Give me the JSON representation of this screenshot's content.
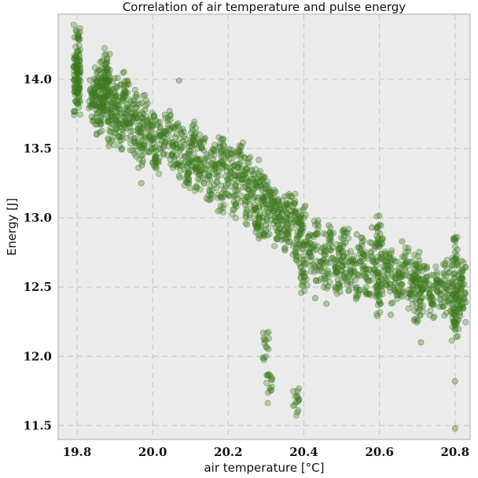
{
  "chart_data": {
    "type": "scatter",
    "title": "Correlation of air temperature and pulse energy",
    "xlabel": "air temperature [°C]",
    "ylabel": "Energy [J]",
    "xlim": [
      19.75,
      20.84
    ],
    "ylim": [
      11.4,
      14.47
    ],
    "xticks": [
      19.8,
      20.0,
      20.2,
      20.4,
      20.6,
      20.8
    ],
    "xtick_labels": [
      "19.8",
      "20.0",
      "20.2",
      "20.4",
      "20.6",
      "20.8"
    ],
    "yticks": [
      11.5,
      12.0,
      12.5,
      13.0,
      13.5,
      14.0
    ],
    "ytick_labels": [
      "11.5",
      "12.0",
      "12.5",
      "13.0",
      "13.5",
      "14.0"
    ],
    "grid": true,
    "series": [
      {
        "color": "#3d7a1e",
        "points": [
          [
            19.8,
            14.3
          ],
          [
            19.8,
            14.2
          ],
          [
            19.8,
            14.1
          ],
          [
            19.8,
            14.05
          ],
          [
            19.8,
            14.0
          ],
          [
            19.8,
            13.95
          ],
          [
            19.8,
            13.9
          ],
          [
            19.8,
            13.85
          ],
          [
            19.84,
            13.9
          ],
          [
            19.84,
            13.82
          ],
          [
            19.85,
            14.0
          ],
          [
            19.85,
            13.78
          ],
          [
            19.86,
            13.95
          ],
          [
            19.86,
            13.86
          ],
          [
            19.86,
            13.7
          ],
          [
            19.87,
            14.05
          ],
          [
            19.87,
            13.92
          ],
          [
            19.87,
            13.8
          ],
          [
            19.88,
            14.15
          ],
          [
            19.88,
            13.98
          ],
          [
            19.88,
            13.88
          ],
          [
            19.89,
            13.75
          ],
          [
            19.89,
            13.62
          ],
          [
            19.9,
            13.9
          ],
          [
            19.9,
            13.8
          ],
          [
            19.91,
            13.7
          ],
          [
            19.92,
            13.86
          ],
          [
            19.92,
            13.6
          ],
          [
            19.93,
            13.95
          ],
          [
            19.93,
            13.75
          ],
          [
            19.94,
            13.68
          ],
          [
            19.95,
            13.82
          ],
          [
            19.95,
            13.55
          ],
          [
            19.96,
            13.72
          ],
          [
            19.97,
            13.62
          ],
          [
            19.97,
            13.45
          ],
          [
            19.98,
            13.78
          ],
          [
            19.99,
            13.58
          ],
          [
            20.0,
            13.66
          ],
          [
            20.0,
            13.5
          ],
          [
            20.01,
            13.4
          ],
          [
            20.02,
            13.6
          ],
          [
            20.03,
            13.52
          ],
          [
            20.04,
            13.7
          ],
          [
            20.05,
            13.45
          ],
          [
            20.06,
            13.58
          ],
          [
            20.07,
            13.4
          ],
          [
            20.08,
            13.55
          ],
          [
            20.09,
            13.3
          ],
          [
            20.1,
            13.48
          ],
          [
            20.1,
            13.38
          ],
          [
            20.11,
            13.6
          ],
          [
            20.12,
            13.28
          ],
          [
            20.12,
            13.42
          ],
          [
            20.13,
            13.5
          ],
          [
            20.14,
            13.35
          ],
          [
            20.15,
            13.2
          ],
          [
            20.16,
            13.42
          ],
          [
            20.17,
            13.3
          ],
          [
            20.18,
            13.48
          ],
          [
            20.18,
            13.15
          ],
          [
            20.19,
            13.38
          ],
          [
            20.2,
            13.25
          ],
          [
            20.21,
            13.4
          ],
          [
            20.22,
            13.1
          ],
          [
            20.22,
            13.3
          ],
          [
            20.23,
            13.45
          ],
          [
            20.24,
            13.22
          ],
          [
            20.25,
            13.35
          ],
          [
            20.25,
            13.05
          ],
          [
            20.26,
            13.28
          ],
          [
            20.27,
            13.15
          ],
          [
            20.28,
            13.32
          ],
          [
            20.28,
            13.0
          ],
          [
            20.29,
            13.2
          ],
          [
            20.3,
            13.1
          ],
          [
            20.3,
            12.95
          ],
          [
            20.31,
            13.18
          ],
          [
            20.32,
            13.05
          ],
          [
            20.33,
            12.9
          ],
          [
            20.33,
            13.12
          ],
          [
            20.34,
            12.98
          ],
          [
            20.35,
            13.05
          ],
          [
            20.35,
            12.85
          ],
          [
            20.36,
            12.92
          ],
          [
            20.37,
            13.08
          ],
          [
            20.38,
            12.95
          ],
          [
            20.38,
            12.78
          ],
          [
            20.39,
            12.9
          ],
          [
            20.4,
            12.7
          ],
          [
            20.4,
            13.0
          ],
          [
            20.4,
            12.55
          ],
          [
            20.41,
            12.82
          ],
          [
            20.42,
            12.72
          ],
          [
            20.43,
            12.88
          ],
          [
            20.44,
            12.65
          ],
          [
            20.45,
            12.78
          ],
          [
            20.46,
            12.6
          ],
          [
            20.47,
            12.85
          ],
          [
            20.48,
            12.7
          ],
          [
            20.49,
            12.55
          ],
          [
            20.5,
            12.75
          ],
          [
            20.5,
            12.62
          ],
          [
            20.51,
            12.82
          ],
          [
            20.52,
            12.58
          ],
          [
            20.53,
            12.7
          ],
          [
            20.54,
            12.5
          ],
          [
            20.55,
            12.78
          ],
          [
            20.56,
            12.65
          ],
          [
            20.57,
            12.55
          ],
          [
            20.58,
            12.72
          ],
          [
            20.59,
            12.6
          ],
          [
            20.6,
            12.8
          ],
          [
            20.6,
            12.5
          ],
          [
            20.6,
            12.4
          ],
          [
            20.6,
            12.95
          ],
          [
            20.61,
            12.65
          ],
          [
            20.62,
            12.55
          ],
          [
            20.63,
            12.7
          ],
          [
            20.64,
            12.48
          ],
          [
            20.65,
            12.6
          ],
          [
            20.66,
            12.52
          ],
          [
            20.67,
            12.68
          ],
          [
            20.68,
            12.45
          ],
          [
            20.69,
            12.58
          ],
          [
            20.7,
            12.5
          ],
          [
            20.7,
            12.35
          ],
          [
            20.7,
            12.65
          ],
          [
            20.71,
            12.42
          ],
          [
            20.72,
            12.55
          ],
          [
            20.73,
            12.48
          ],
          [
            20.74,
            12.38
          ],
          [
            20.75,
            12.55
          ],
          [
            20.76,
            12.45
          ],
          [
            20.77,
            12.6
          ],
          [
            20.78,
            12.4
          ],
          [
            20.79,
            12.5
          ],
          [
            20.8,
            12.45
          ],
          [
            20.8,
            12.3
          ],
          [
            20.8,
            12.6
          ],
          [
            20.8,
            12.2
          ],
          [
            20.8,
            12.75
          ],
          [
            20.81,
            12.4
          ],
          [
            20.82,
            12.52
          ],
          [
            20.82,
            12.35
          ],
          [
            20.82,
            12.62
          ],
          [
            20.28,
            12.95
          ],
          [
            20.3,
            12.07
          ],
          [
            20.31,
            11.77
          ],
          [
            20.38,
            11.67
          ],
          [
            20.8,
            11.82
          ],
          [
            20.8,
            11.48
          ],
          [
            20.46,
            12.38
          ],
          [
            20.63,
            12.3
          ],
          [
            20.71,
            12.1
          ],
          [
            20.58,
            12.93
          ],
          [
            19.97,
            13.25
          ],
          [
            20.07,
            13.99
          ],
          [
            20.43,
            12.42
          ],
          [
            20.54,
            12.88
          ],
          [
            20.66,
            12.83
          ]
        ]
      }
    ]
  }
}
